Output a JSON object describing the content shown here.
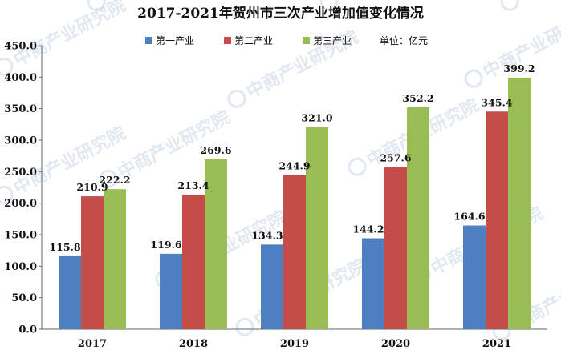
{
  "chart_data": {
    "type": "bar",
    "title": "2017-2021年贺州市三次产业增加值变化情况",
    "unit_label": "单位：亿元",
    "categories": [
      "2017",
      "2018",
      "2019",
      "2020",
      "2021"
    ],
    "series": [
      {
        "name": "第一产业",
        "color": "#4f7fc3",
        "values": [
          115.8,
          119.6,
          134.3,
          144.2,
          164.6
        ]
      },
      {
        "name": "第二产业",
        "color": "#c44d4a",
        "values": [
          210.9,
          213.4,
          244.9,
          257.6,
          345.4
        ]
      },
      {
        "name": "第三产业",
        "color": "#99bc55",
        "values": [
          222.2,
          269.6,
          321.0,
          352.2,
          399.2
        ]
      }
    ],
    "ylim": [
      0,
      450
    ],
    "yticks": [
      "0.0",
      "50.0",
      "100.0",
      "150.0",
      "200.0",
      "250.0",
      "300.0",
      "350.0",
      "400.0",
      "450.0"
    ],
    "grid": false,
    "legend_position": "top-center"
  },
  "watermark": {
    "text": "中商产业研究院",
    "icon": "logo-circle-icon"
  }
}
